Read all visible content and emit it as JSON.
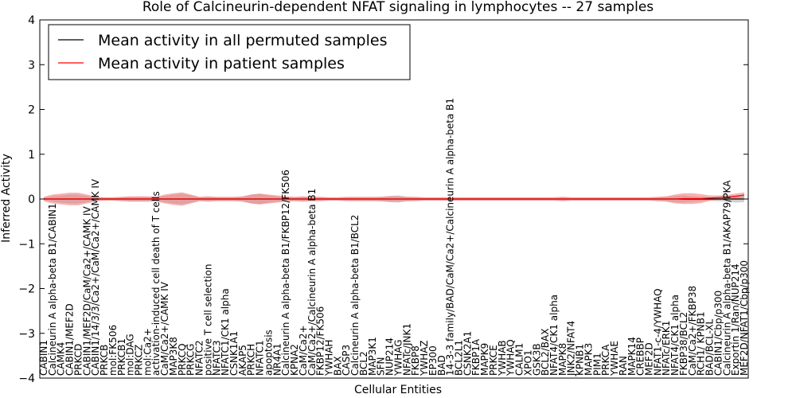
{
  "chart_data": {
    "type": "line",
    "title": "Role of Calcineurin-dependent NFAT signaling in lymphocytes -- 27 samples",
    "xlabel": "Cellular Entities",
    "ylabel": "Inferred Activity",
    "ylim": [
      -4,
      4
    ],
    "yticks": [
      -4,
      -3,
      -2,
      -1,
      0,
      1,
      2,
      3,
      4
    ],
    "legend_position": "top-left",
    "series": [
      {
        "name": "Mean activity in all permuted samples",
        "color": "#000000",
        "band_color": "#aaaaaa"
      },
      {
        "name": "Mean activity in patient samples",
        "color": "#ff0000",
        "band_color": "#f08080"
      }
    ],
    "categories": [
      "CABIN1",
      "Calcineurin A alpha-beta B1/CABIN1",
      "CAMK4",
      "CABIN1/MEF2D",
      "PRKCD",
      "CABIN1/MEF2D/CaM/Ca2+/CAMK IV",
      "CABIN1/14/3/3/Ca2+/CaM/Ca2+/CAMK IV",
      "PRKCB",
      "mol:FK506",
      "PRKCB1",
      "mol:DAG",
      "PRKCZ",
      "mol:Ca2+",
      "activation-induced cell death of T cells",
      "CaM/Ca2+/CAMK IV",
      "MAP3K8",
      "PRKCQ",
      "PRKCG",
      "NFATC2",
      "positive T cell selection",
      "NFATC3",
      "NFATC1/CK1 alpha",
      "CSNK1A1",
      "AKAP5",
      "PRKCH",
      "NFATC1",
      "apoptosis",
      "NR4A1",
      "Calcineurin A alpha-beta B1/FKBP12/FK506",
      "KPNA2",
      "CaM/Ca2+",
      "CaM/Ca2+/Calcineurin A alpha-beta B1",
      "FKBP12/FK506",
      "YWHAH",
      "BAX",
      "CASP3",
      "Calcineurin A alpha-beta B1/BCL2",
      "BCL2",
      "MAP3K1",
      "SFN",
      "NUP214",
      "YWHAG",
      "NFATc/JNK1",
      "FKBP8",
      "YWHAZ",
      "EP300",
      "BAD",
      "14-3-3 family/BAD/CaM/Ca2+/Calcineurin A alpha-beta B1",
      "BCL2L1",
      "CSNK2A1",
      "FKBP1A",
      "MAPK9",
      "PRKCE",
      "YWHAB",
      "YWHAQ",
      "CALM1",
      "XPO1",
      "GSK3B",
      "BCL2/BAX",
      "NFAT4/CK1 alpha",
      "MAPK8",
      "JNK2/NFAT4",
      "KPNB1",
      "MAPK3",
      "PIM1",
      "PRKCA",
      "YWHAE",
      "RAN",
      "MAPK14",
      "CREBBP",
      "MEF2D",
      "NFAT1-c-4/YWHAQ",
      "NFATc/ERK1",
      "NFAT4/CK1 alpha",
      "FKBP38/BCL2",
      "CaM/Ca2+/FKBP38",
      "RCH1/ KPNB1",
      "BAD/BCL-XL",
      "CABIN1/Cbp/p300",
      "Calcineurin A alpha-beta B1/AKAP79/PKA",
      "Exportin 1/Ran/NUP214",
      "MEF2D/NFAT1/Cbp/p300"
    ],
    "patient_mean": [
      0.0,
      0.0,
      0.0,
      0.0,
      0.0,
      0.0,
      0.0,
      0.0,
      0.0,
      0.0,
      0.0,
      0.0,
      0.0,
      0.0,
      0.0,
      0.0,
      0.0,
      0.0,
      0.0,
      0.0,
      0.0,
      0.0,
      0.0,
      0.0,
      0.0,
      0.0,
      0.0,
      0.0,
      0.0,
      0.0,
      0.0,
      0.0,
      0.0,
      0.0,
      0.0,
      0.0,
      0.0,
      0.0,
      0.0,
      0.0,
      0.0,
      0.0,
      0.0,
      0.0,
      0.0,
      0.0,
      0.0,
      0.0,
      0.0,
      0.0,
      0.0,
      0.0,
      0.0,
      0.0,
      0.0,
      0.0,
      0.0,
      0.0,
      0.0,
      0.0,
      0.0,
      0.0,
      0.0,
      0.0,
      0.0,
      0.0,
      0.0,
      0.0,
      0.0,
      0.0,
      0.0,
      0.0,
      0.0,
      0.0,
      0.01,
      0.01,
      0.01,
      0.02,
      0.03,
      0.04,
      0.06,
      0.09
    ],
    "patient_spread": [
      0.05,
      0.1,
      0.12,
      0.14,
      0.14,
      0.1,
      0.05,
      0.04,
      0.04,
      0.05,
      0.06,
      0.06,
      0.06,
      0.05,
      0.1,
      0.13,
      0.15,
      0.1,
      0.05,
      0.06,
      0.05,
      0.05,
      0.05,
      0.06,
      0.1,
      0.12,
      0.1,
      0.08,
      0.06,
      0.05,
      0.06,
      0.05,
      0.05,
      0.04,
      0.04,
      0.05,
      0.05,
      0.05,
      0.05,
      0.05,
      0.06,
      0.06,
      0.05,
      0.05,
      0.04,
      0.04,
      0.04,
      0.04,
      0.04,
      0.04,
      0.04,
      0.04,
      0.04,
      0.04,
      0.04,
      0.04,
      0.04,
      0.04,
      0.04,
      0.04,
      0.05,
      0.04,
      0.04,
      0.04,
      0.04,
      0.04,
      0.04,
      0.04,
      0.04,
      0.04,
      0.04,
      0.05,
      0.06,
      0.1,
      0.12,
      0.12,
      0.1,
      0.06,
      0.05,
      0.05,
      0.06,
      0.06
    ],
    "permuted_mean": [
      0.0,
      0.0,
      0.0,
      0.0,
      0.0,
      0.0,
      0.0,
      0.0,
      0.0,
      0.0,
      0.0,
      0.0,
      0.0,
      0.0,
      0.0,
      0.0,
      0.0,
      0.0,
      0.0,
      0.0,
      0.0,
      0.0,
      0.0,
      0.0,
      0.0,
      0.0,
      0.0,
      0.0,
      0.0,
      0.0,
      0.0,
      0.0,
      0.0,
      0.0,
      0.0,
      0.0,
      0.0,
      0.0,
      0.0,
      0.0,
      0.0,
      0.0,
      0.0,
      0.0,
      0.0,
      0.0,
      0.0,
      0.0,
      0.0,
      0.0,
      0.0,
      0.0,
      0.0,
      0.0,
      0.0,
      0.0,
      0.0,
      0.0,
      0.0,
      0.0,
      0.0,
      0.0,
      0.0,
      0.0,
      0.0,
      0.0,
      0.0,
      0.0,
      0.0,
      0.0,
      0.0,
      0.0,
      0.0,
      0.0,
      0.0,
      0.0,
      0.0,
      0.0,
      0.0,
      0.0,
      0.0,
      0.0
    ],
    "permuted_spread": [
      0.03,
      0.06,
      0.08,
      0.1,
      0.1,
      0.07,
      0.04,
      0.03,
      0.03,
      0.04,
      0.05,
      0.05,
      0.05,
      0.04,
      0.07,
      0.1,
      0.12,
      0.08,
      0.04,
      0.05,
      0.04,
      0.04,
      0.04,
      0.05,
      0.1,
      0.12,
      0.08,
      0.06,
      0.04,
      0.04,
      0.05,
      0.04,
      0.04,
      0.03,
      0.03,
      0.04,
      0.04,
      0.04,
      0.04,
      0.05,
      0.07,
      0.08,
      0.05,
      0.04,
      0.03,
      0.03,
      0.03,
      0.03,
      0.03,
      0.03,
      0.03,
      0.03,
      0.03,
      0.03,
      0.03,
      0.03,
      0.03,
      0.03,
      0.03,
      0.03,
      0.04,
      0.03,
      0.03,
      0.03,
      0.03,
      0.03,
      0.03,
      0.03,
      0.03,
      0.03,
      0.03,
      0.04,
      0.05,
      0.07,
      0.08,
      0.06,
      0.05,
      0.04,
      0.05,
      0.06,
      0.08,
      0.07
    ]
  }
}
